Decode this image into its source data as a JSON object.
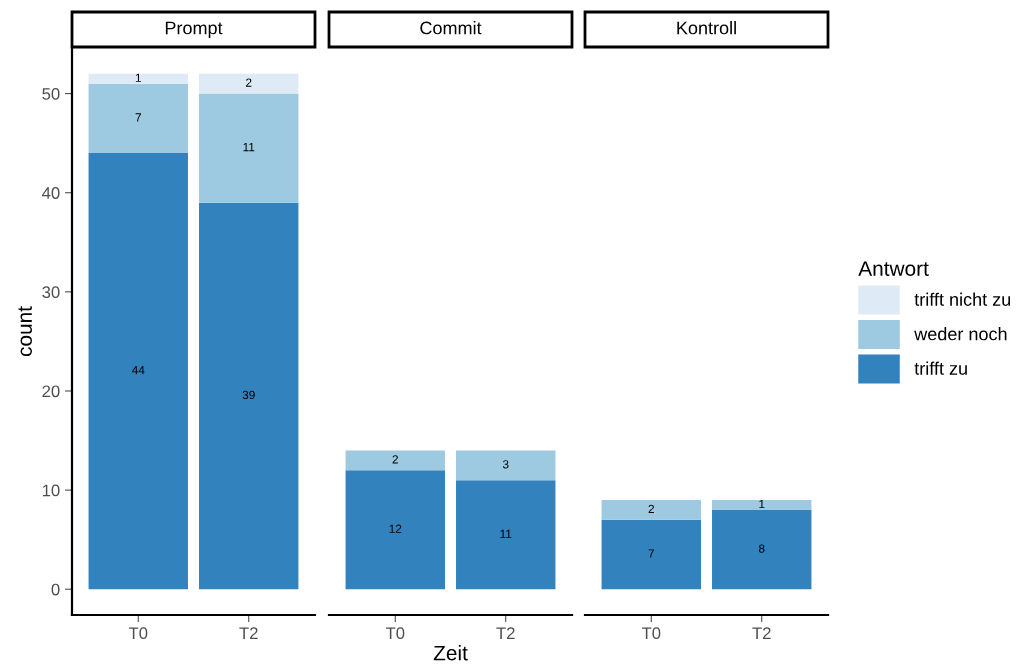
{
  "chart_data": [
    {
      "type": "bar",
      "stacked": true,
      "data_labels": true,
      "title": "Prompt",
      "ylabel": "count",
      "categories": [
        "T0",
        "T2"
      ],
      "ylim": [
        -2.6,
        54.6
      ],
      "yticks": [
        0,
        10,
        20,
        30,
        40,
        50
      ],
      "grid": false,
      "series": [
        {
          "color": "#3182bd",
          "values": [
            44,
            39
          ]
        },
        {
          "color": "#9ecae1",
          "values": [
            7,
            11
          ]
        },
        {
          "color": "#deebf7",
          "values": [
            1,
            2
          ]
        }
      ]
    },
    {
      "type": "bar",
      "stacked": true,
      "data_labels": true,
      "title": "Commit",
      "xlabel": "Zeit",
      "categories": [
        "T0",
        "T2"
      ],
      "tick_labels": "x",
      "grid": false,
      "series": [
        {
          "color": "#3182bd",
          "values": [
            12,
            11
          ]
        },
        {
          "color": "#9ecae1",
          "values": [
            2,
            3
          ]
        }
      ]
    },
    {
      "type": "bar",
      "stacked": true,
      "data_labels": true,
      "title": "Kontroll",
      "categories": [
        "T0",
        "T2"
      ],
      "tick_labels": "x",
      "grid": false,
      "legend": "right",
      "legend_title": "Antwort",
      "series": [
        {
          "name": "trifft zu",
          "color": "#3182bd",
          "values": [
            7,
            8
          ]
        },
        {
          "name": "weder noch",
          "color": "#9ecae1",
          "values": [
            2,
            1
          ]
        },
        {
          "name": "trifft nicht zu",
          "color": "#deebf7",
          "values": [
            null,
            null
          ]
        }
      ]
    }
  ]
}
